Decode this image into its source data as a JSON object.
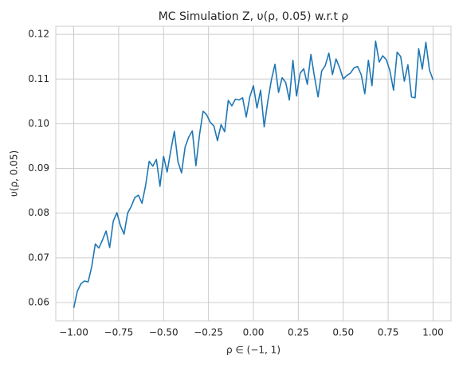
{
  "chart_data": {
    "type": "line",
    "title": "MC Simulation Z, υ(ρ, 0.05) w.r.t ρ",
    "x_label": "ρ ∈ (−1, 1)",
    "y_label": "υ(ρ, 0.05)",
    "x": [
      -1.0,
      -0.98,
      -0.96,
      -0.94,
      -0.92,
      -0.9,
      -0.88,
      -0.86,
      -0.84,
      -0.82,
      -0.8,
      -0.78,
      -0.76,
      -0.74,
      -0.72,
      -0.7,
      -0.68,
      -0.66,
      -0.64,
      -0.62,
      -0.6,
      -0.58,
      -0.56,
      -0.54,
      -0.52,
      -0.5,
      -0.48,
      -0.46,
      -0.44,
      -0.42,
      -0.4,
      -0.38,
      -0.36,
      -0.34,
      -0.32,
      -0.3,
      -0.28,
      -0.26,
      -0.24,
      -0.22,
      -0.2,
      -0.18,
      -0.16,
      -0.14,
      -0.12,
      -0.1,
      -0.08,
      -0.06,
      -0.04,
      -0.02,
      0.0,
      0.02,
      0.04,
      0.06,
      0.08,
      0.1,
      0.12,
      0.14,
      0.16,
      0.18,
      0.2,
      0.22,
      0.24,
      0.26,
      0.28,
      0.3,
      0.32,
      0.34,
      0.36,
      0.38,
      0.4,
      0.42,
      0.44,
      0.46,
      0.48,
      0.5,
      0.52,
      0.54,
      0.56,
      0.58,
      0.6,
      0.62,
      0.64,
      0.66,
      0.68,
      0.7,
      0.72,
      0.74,
      0.76,
      0.78,
      0.8,
      0.82,
      0.84,
      0.86,
      0.88,
      0.9,
      0.92,
      0.94,
      0.96,
      0.98,
      1.0
    ],
    "series": [
      {
        "name": "υ",
        "color": "#1f77b4",
        "values": [
          0.0588,
          0.0625,
          0.0642,
          0.0648,
          0.0646,
          0.068,
          0.0731,
          0.0722,
          0.074,
          0.076,
          0.0723,
          0.0782,
          0.0801,
          0.0772,
          0.0753,
          0.08,
          0.0815,
          0.0835,
          0.084,
          0.0822,
          0.0862,
          0.0916,
          0.0905,
          0.092,
          0.086,
          0.0927,
          0.0892,
          0.094,
          0.0983,
          0.0915,
          0.089,
          0.0948,
          0.097,
          0.0984,
          0.0906,
          0.0975,
          0.1028,
          0.102,
          0.1003,
          0.0995,
          0.0962,
          0.0998,
          0.0982,
          0.1052,
          0.104,
          0.1055,
          0.1053,
          0.1058,
          0.1015,
          0.106,
          0.1085,
          0.1035,
          0.1075,
          0.0993,
          0.105,
          0.1098,
          0.1133,
          0.107,
          0.1103,
          0.1092,
          0.1053,
          0.1142,
          0.1062,
          0.1113,
          0.1123,
          0.1088,
          0.1155,
          0.1105,
          0.106,
          0.1118,
          0.113,
          0.1158,
          0.111,
          0.1145,
          0.1125,
          0.11,
          0.1108,
          0.1113,
          0.1125,
          0.1128,
          0.111,
          0.1067,
          0.1142,
          0.1085,
          0.1185,
          0.1138,
          0.1152,
          0.1143,
          0.1118,
          0.1075,
          0.116,
          0.115,
          0.1095,
          0.1132,
          0.106,
          0.1058,
          0.1168,
          0.1122,
          0.1182,
          0.112,
          0.1098
        ]
      }
    ],
    "xlim": [
      -1.1,
      1.1
    ],
    "ylim": [
      0.0559,
      0.1218
    ],
    "xticks": [
      {
        "value": -1,
        "label": "−1.00"
      },
      {
        "value": -0.75,
        "label": "−0.75"
      },
      {
        "value": -0.5,
        "label": "−0.50"
      },
      {
        "value": -0.25,
        "label": "−0.25"
      },
      {
        "value": 0,
        "label": "0.00"
      },
      {
        "value": 0.25,
        "label": "0.25"
      },
      {
        "value": 0.5,
        "label": "0.50"
      },
      {
        "value": 0.75,
        "label": "0.75"
      },
      {
        "value": 1,
        "label": "1.00"
      }
    ],
    "yticks": [
      0.06,
      0.07,
      0.08,
      0.09,
      {
        "value": 0.1,
        "label": "0.10"
      },
      0.11,
      0.12
    ],
    "grid": true
  }
}
